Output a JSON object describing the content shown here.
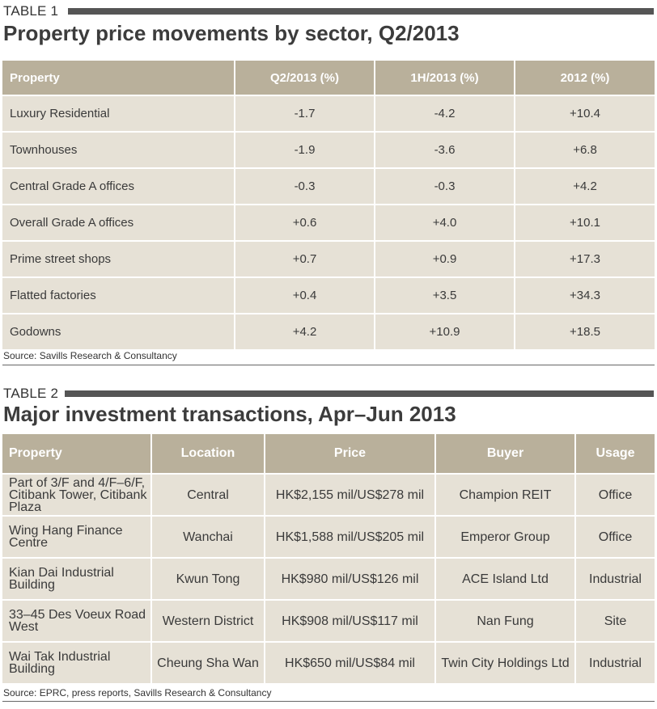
{
  "table1": {
    "label": "TABLE 1",
    "title": "Property price movements by sector, Q2/2013",
    "headers": [
      "Property",
      "Q2/2013 (%)",
      "1H/2013 (%)",
      "2012 (%)"
    ],
    "rows": [
      [
        "Luxury Residential",
        "-1.7",
        "-4.2",
        "+10.4"
      ],
      [
        "Townhouses",
        "-1.9",
        "-3.6",
        "+6.8"
      ],
      [
        "Central Grade A offices",
        "-0.3",
        "-0.3",
        "+4.2"
      ],
      [
        "Overall Grade A offices",
        "+0.6",
        "+4.0",
        "+10.1"
      ],
      [
        "Prime street shops",
        "+0.7",
        "+0.9",
        "+17.3"
      ],
      [
        "Flatted factories",
        "+0.4",
        "+3.5",
        "+34.3"
      ],
      [
        "Godowns",
        "+4.2",
        "+10.9",
        "+18.5"
      ]
    ],
    "source": "Source: Savills Research & Consultancy"
  },
  "table2": {
    "label": "TABLE 2",
    "title": "Major investment transactions, Apr–Jun 2013",
    "headers": [
      "Property",
      "Location",
      "Price",
      "Buyer",
      "Usage"
    ],
    "rows": [
      [
        "Part of 3/F and 4/F–6/F, Citibank Tower, Citibank Plaza",
        "Central",
        "HK$2,155 mil/US$278 mil",
        "Champion REIT",
        "Office"
      ],
      [
        "Wing Hang Finance Centre",
        "Wanchai",
        "HK$1,588 mil/US$205 mil",
        "Emperor Group",
        "Office"
      ],
      [
        "Kian Dai Industrial Building",
        "Kwun Tong",
        "HK$980 mil/US$126 mil",
        "ACE Island Ltd",
        "Industrial"
      ],
      [
        "33–45 Des Voeux Road West",
        "Western District",
        "HK$908 mil/US$117 mil",
        "Nan Fung",
        "Site"
      ],
      [
        "Wai Tak Industrial Building",
        "Cheung Sha Wan",
        "HK$650 mil/US$84 mil",
        "Twin City Holdings Ltd",
        "Industrial"
      ]
    ],
    "source": "Source: EPRC, press reports, Savills Research & Consultancy"
  }
}
